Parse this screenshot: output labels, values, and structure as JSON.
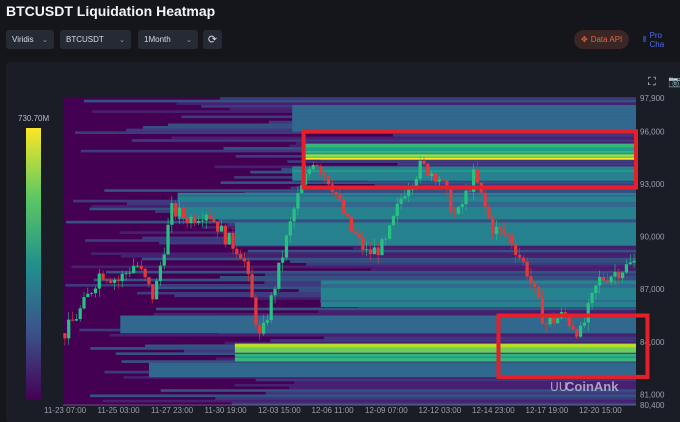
{
  "header": {
    "title": "BTCUSDT Liquidation Heatmap"
  },
  "controls": {
    "colormap": "Viridis",
    "symbol": "BTCUSDT",
    "range": "1Month",
    "refresh_icon": "refresh-icon"
  },
  "actions": {
    "data_api": "Data API",
    "pro_chart": "Pro Cha"
  },
  "colors": {
    "accent_api": "#e8643c",
    "accent_pro": "#4a6cf7",
    "annotation": "#e5202a"
  },
  "watermark": "CoinAnk",
  "chart_data": {
    "type": "heatmap",
    "colorbar": {
      "max_label": "730.70M",
      "colormap": "viridis"
    },
    "y_ticks": [
      97900,
      96000,
      93000,
      90000,
      87000,
      84000,
      81000,
      80400
    ],
    "ylim": [
      80400,
      97900
    ],
    "x_ticks": [
      "11-23 07:00",
      "11-25 03:00",
      "11-27 23:00",
      "11-30 19:00",
      "12-03 15:00",
      "12-06 11:00",
      "12-09 07:00",
      "12-12 03:00",
      "12-14 23:00",
      "12-17 19:00",
      "12-20 15:00"
    ],
    "price_path": [
      84500,
      86000,
      88000,
      87500,
      88500,
      86500,
      91500,
      91000,
      91500,
      90000,
      89000,
      84000,
      88000,
      92000,
      94500,
      93000,
      90500,
      89000,
      89500,
      92500,
      94000,
      93500,
      91000,
      93500,
      90500,
      90000,
      88000,
      85000,
      85500,
      84500,
      87500,
      88000,
      88500
    ],
    "bands": [
      {
        "low": 94400,
        "high": 94700,
        "start": 0.42,
        "intensity": 1.0
      },
      {
        "low": 94700,
        "high": 95300,
        "start": 0.42,
        "intensity": 0.7
      },
      {
        "low": 93200,
        "high": 94000,
        "start": 0.4,
        "intensity": 0.55
      },
      {
        "low": 91000,
        "high": 92500,
        "start": 0.2,
        "intensity": 0.45
      },
      {
        "low": 89500,
        "high": 90800,
        "start": 0.3,
        "intensity": 0.5
      },
      {
        "low": 86000,
        "high": 87500,
        "start": 0.45,
        "intensity": 0.45
      },
      {
        "low": 84500,
        "high": 85500,
        "start": 0.1,
        "intensity": 0.35
      },
      {
        "low": 83400,
        "high": 83900,
        "start": 0.3,
        "intensity": 0.9
      },
      {
        "low": 82900,
        "high": 83300,
        "start": 0.3,
        "intensity": 0.75
      },
      {
        "low": 82000,
        "high": 82800,
        "start": 0.15,
        "intensity": 0.4
      },
      {
        "low": 96000,
        "high": 97500,
        "start": 0.4,
        "intensity": 0.35
      }
    ],
    "annotations": [
      {
        "type": "rect",
        "price_range": [
          92800,
          96000
        ],
        "time_range": [
          0.42,
          1.0
        ]
      },
      {
        "type": "rect",
        "price_range": [
          82000,
          85500
        ],
        "time_range": [
          0.76,
          1.02
        ]
      }
    ]
  }
}
